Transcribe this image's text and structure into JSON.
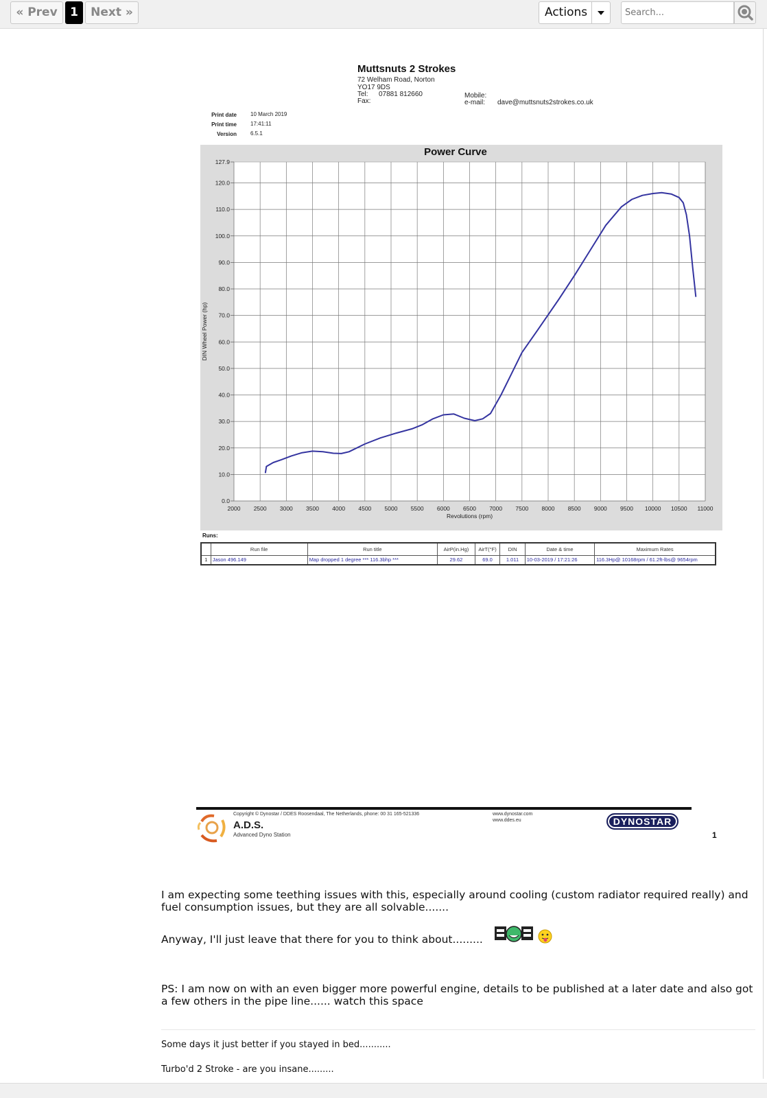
{
  "pagination": {
    "prev_label": "« Prev",
    "current_page": "1",
    "next_label": "Next »"
  },
  "toolbar": {
    "actions_label": "Actions",
    "search_placeholder": "Search..."
  },
  "dyno_sheet": {
    "company": {
      "name": "Muttsnuts 2 Strokes",
      "address1": "72 Welham Road, Norton",
      "address2": "YO17 9DS",
      "tel_label": "Tel:",
      "tel": "07881 812660",
      "fax_label": "Fax:",
      "mobile_label": "Mobile:",
      "email_label": "e-mail:",
      "email": "dave@muttsnuts2strokes.co.uk"
    },
    "meta": {
      "print_date_label": "Print date",
      "print_date": "10 March 2019",
      "print_time_label": "Print time",
      "print_time": "17:41:11",
      "version_label": "Version",
      "version": "6.5.1"
    },
    "runs_label": "Runs:",
    "runs_table": {
      "headers": [
        "",
        "Run file",
        "Run title",
        "AirP(in.Hg)",
        "AirT(°F)",
        "DIN",
        "Date & time",
        "Maximum Rates"
      ],
      "rows": [
        [
          "1",
          "Jason 496.149",
          "Map dropped 1 degree *** 116.3bhp ***",
          "29.62",
          "69.0",
          "1.011",
          "10-03-2019 / 17:21:26",
          "116.3Hp@ 10168rpm / 61.2ft-lbs@ 9654rpm"
        ]
      ]
    },
    "footer": {
      "copyright": "Copyright © Dynostar / DDES  Roosendaal, The Netherlands, phone: 00 31 165-521336",
      "ads_name": "A.D.S.",
      "ads_sub": "Advanced Dyno Station",
      "web1": "www.dynostar.com",
      "web2": "www.ddes.eu",
      "brand": "DYNOSTAR",
      "page_number": "1"
    }
  },
  "chart_data": {
    "type": "line",
    "title": "Power Curve",
    "xlabel": "Revolutions (rpm)",
    "ylabel": "DIN Wheel Power (hp)",
    "xlim": [
      2000,
      11000
    ],
    "ylim": [
      0,
      127.9
    ],
    "x_ticks": [
      2000,
      2500,
      3000,
      3500,
      4000,
      4500,
      5000,
      5500,
      6000,
      6500,
      7000,
      7500,
      8000,
      8500,
      9000,
      9500,
      10000,
      10500,
      11000
    ],
    "y_ticks": [
      0.0,
      10.0,
      20.0,
      30.0,
      40.0,
      50.0,
      60.0,
      70.0,
      80.0,
      90.0,
      100.0,
      110.0,
      120.0,
      127.9
    ],
    "grid": true,
    "series": [
      {
        "color": "#3434a0",
        "x": [
          2600,
          2620,
          2750,
          2900,
          3100,
          3300,
          3500,
          3700,
          3900,
          4050,
          4200,
          4500,
          4800,
          5100,
          5400,
          5600,
          5800,
          6000,
          6200,
          6400,
          6600,
          6750,
          6900,
          7100,
          7300,
          7500,
          7800,
          8200,
          8500,
          8800,
          9100,
          9400,
          9600,
          9800,
          10000,
          10168,
          10350,
          10500,
          10580,
          10640,
          10700,
          10760,
          10820
        ],
        "y": [
          10.5,
          13.0,
          14.5,
          15.5,
          17.0,
          18.2,
          18.8,
          18.6,
          18.0,
          17.9,
          18.6,
          21.5,
          23.8,
          25.6,
          27.2,
          28.8,
          31.0,
          32.5,
          32.8,
          31.2,
          30.3,
          31.0,
          33.0,
          40.0,
          48.0,
          56.0,
          64.5,
          76.0,
          85.0,
          94.5,
          104.0,
          111.0,
          113.8,
          115.3,
          116.0,
          116.3,
          115.8,
          114.5,
          112.5,
          108.0,
          100.0,
          88.0,
          77.0
        ]
      }
    ]
  },
  "post": {
    "paragraph1": "I am expecting some teething issues with this, especially around cooling (custom radiator required really) and fuel consumption issues, but they are all solvable.......",
    "paragraph2": "Anyway, I'll just leave that there for you to think about.........",
    "paragraph3": "PS: I am now on with an even bigger more powerful engine, details to be published at a later date and also got a few others in the pipe line...... watch this space",
    "signature1": "Some days it just better if you stayed in bed...........",
    "signature2": "Turbo'd 2 Stroke - are you insane........."
  }
}
